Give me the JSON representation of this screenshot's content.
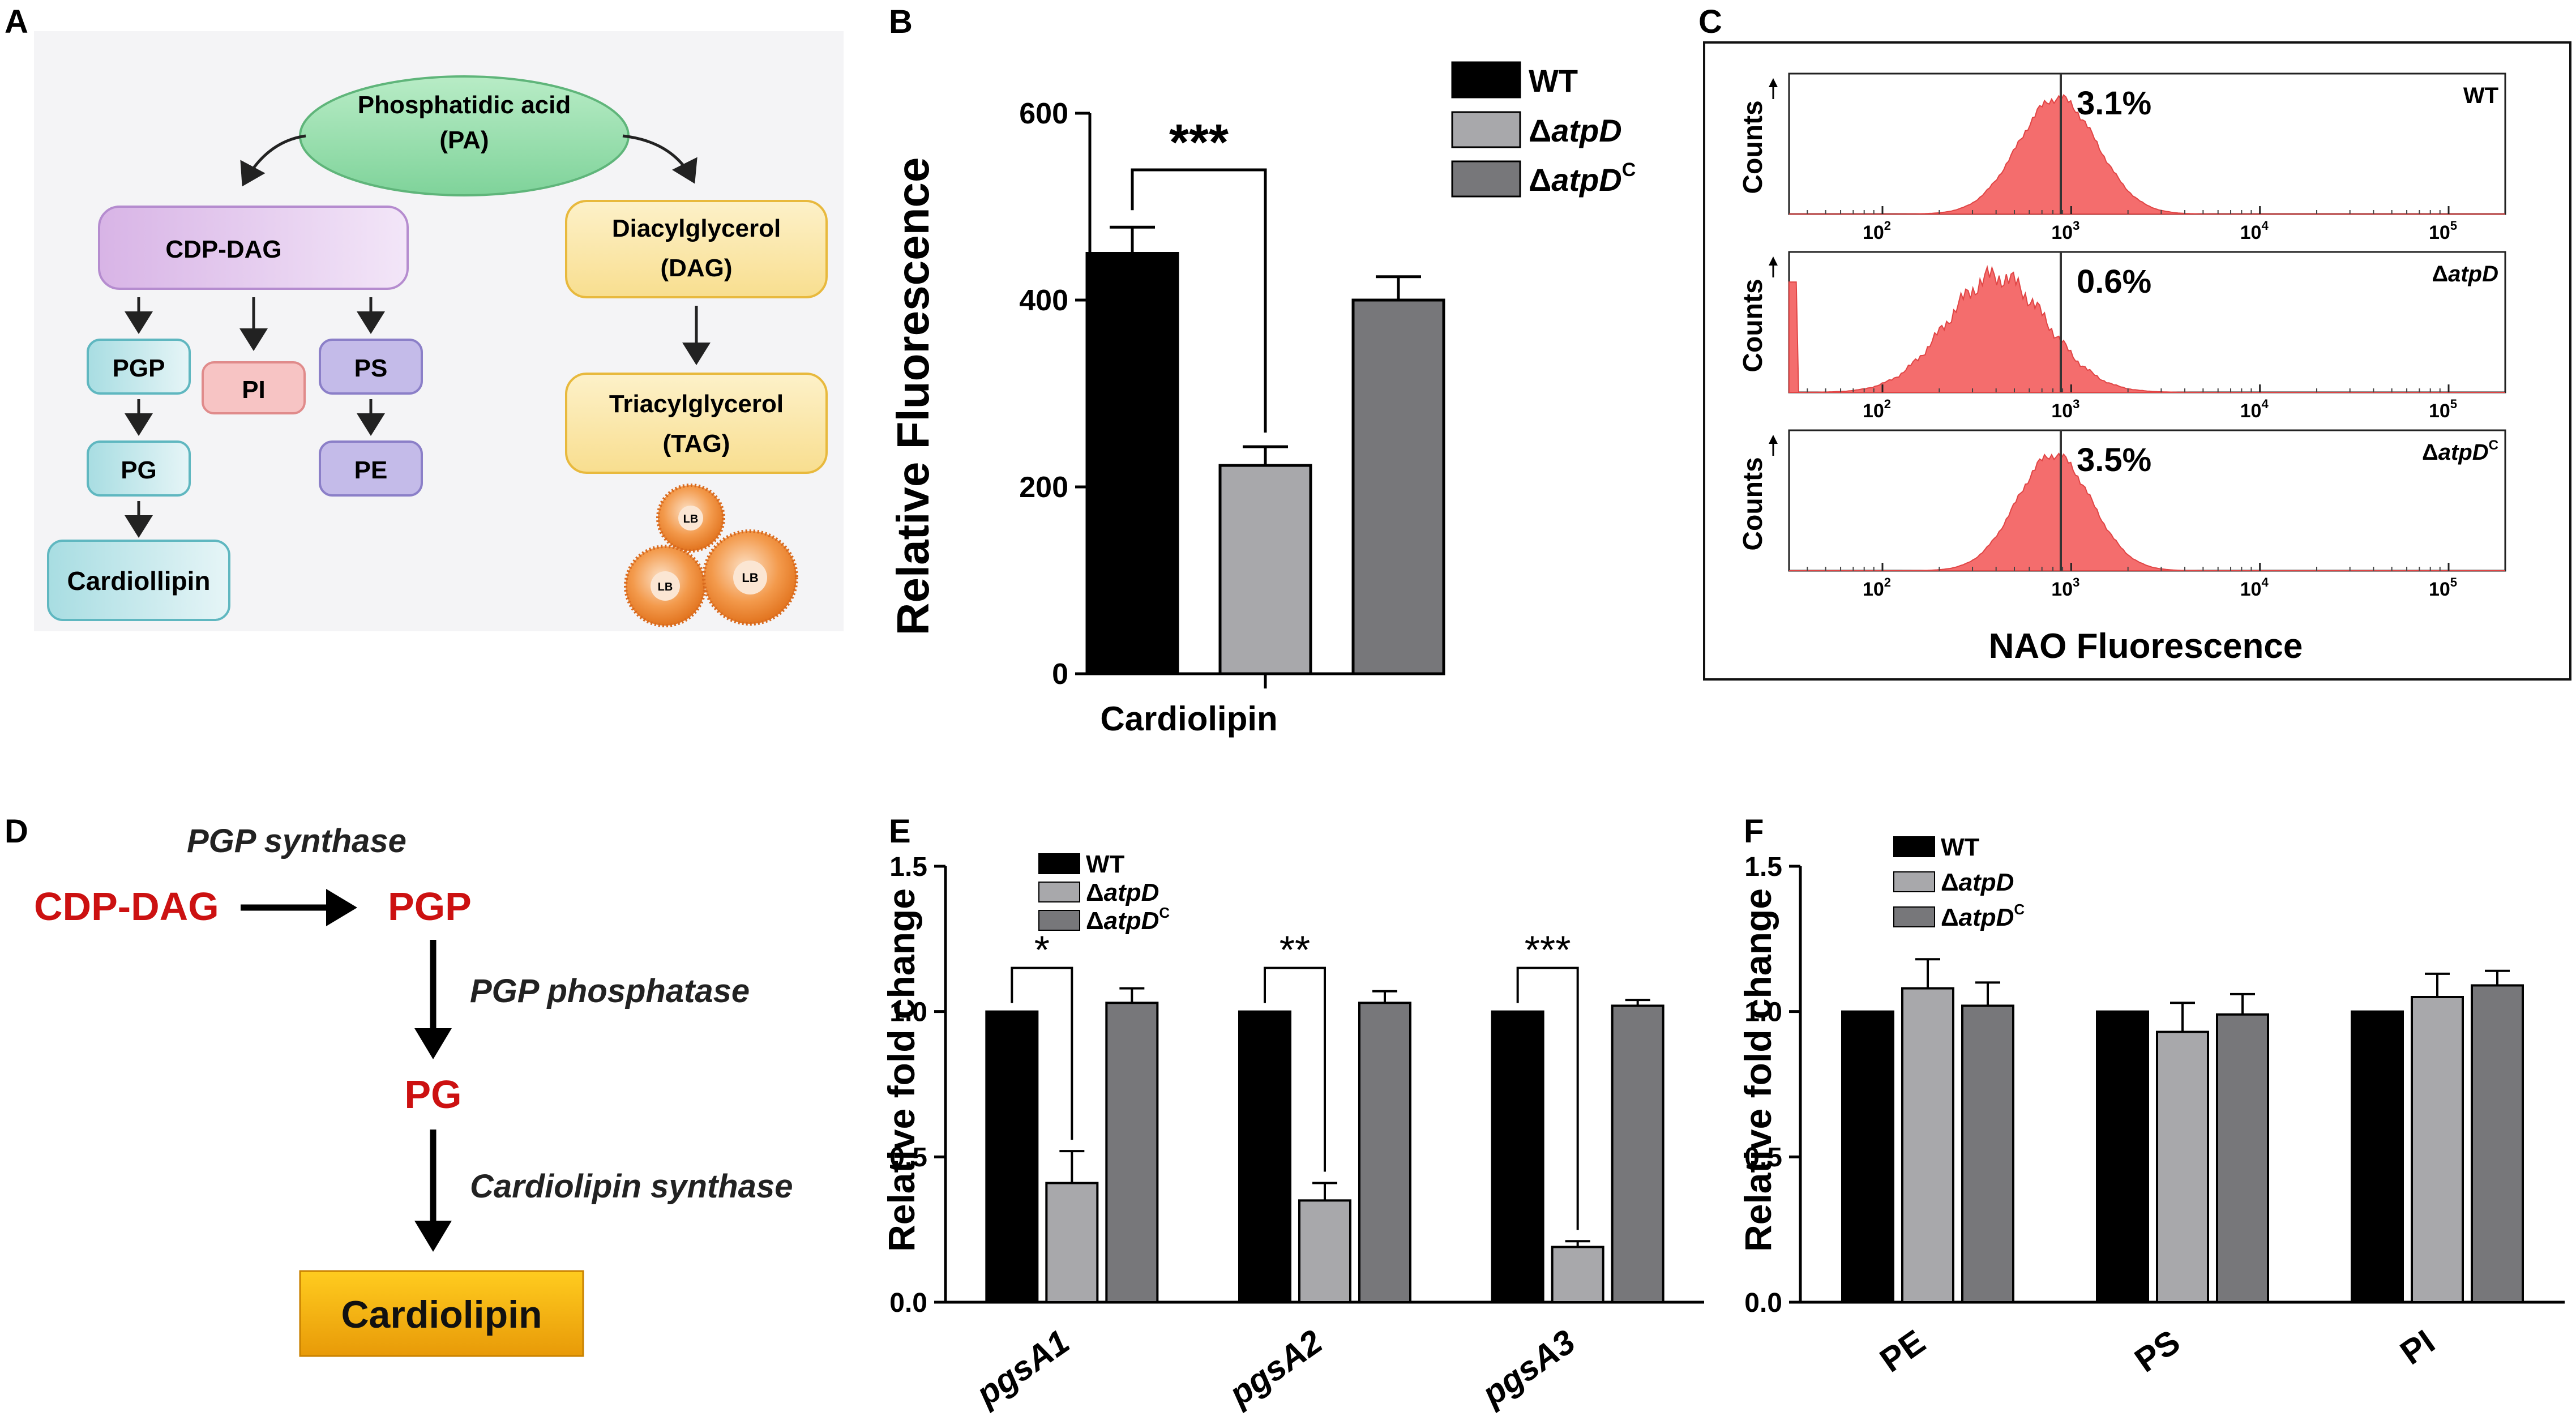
{
  "panel_letters": {
    "a": "A",
    "b": "B",
    "c": "C",
    "d": "D",
    "e": "E",
    "f": "F"
  },
  "colors": {
    "wt": "#000000",
    "atpd": "#a8a8ab",
    "atpdc": "#77777a",
    "hist": "#f46d6d",
    "red_text": "#cc1111",
    "cardiolipin_box": "#f3b412"
  },
  "panel_a": {
    "pa": {
      "line1": "Phosphatidic acid",
      "line2": "(PA)"
    },
    "cdp_dag": "CDP-DAG",
    "pgp": "PGP",
    "pi": "PI",
    "ps": "PS",
    "pg": "PG",
    "pe": "PE",
    "cardiolipin": "Cardiollipin",
    "dag": {
      "line1": "Diacylglycerol",
      "line2": "(DAG)"
    },
    "tag": {
      "line1": "Triacylglycerol",
      "line2": "(TAG)"
    },
    "lb": "LB"
  },
  "legend": {
    "wt": "WT",
    "atpd_prefix": "Δ",
    "atpd_gene": "atpD",
    "atpdc_prefix": "Δ",
    "atpdc_gene": "atpD",
    "atpdc_sup": "C"
  },
  "chart_data": [
    {
      "panel": "B",
      "type": "bar",
      "categories": [
        "Cardiolipin"
      ],
      "series": [
        {
          "name": "WT",
          "values": [
            450
          ],
          "errors": [
            28
          ]
        },
        {
          "name": "ΔatpD",
          "values": [
            223
          ],
          "errors": [
            20
          ]
        },
        {
          "name": "ΔatpDC",
          "values": [
            400
          ],
          "errors": [
            25
          ]
        }
      ],
      "xlabel": "Cardiolipin",
      "ylabel": "Relative Fluorescence",
      "ylim": [
        0,
        600
      ],
      "yticks": [
        "0",
        "200",
        "400",
        "600"
      ],
      "significance": [
        {
          "pair": [
            "WT",
            "ΔatpD"
          ],
          "label": "***"
        }
      ]
    },
    {
      "panel": "C",
      "type": "histogram",
      "xlabel": "NAO Fluorescence",
      "ylabel": "Counts",
      "xticks": [
        "10",
        "10",
        "10",
        "10"
      ],
      "xtick_exponents": [
        "2",
        "3",
        "4",
        "5"
      ],
      "subpanels": [
        {
          "name": "WT",
          "percent": "3.1%",
          "label_prefix": "",
          "label_gene": "WT",
          "label_sup": ""
        },
        {
          "name": "ΔatpD",
          "percent": "0.6%",
          "label_prefix": "Δ",
          "label_gene": "atpD",
          "label_sup": ""
        },
        {
          "name": "ΔatpDC",
          "percent": "3.5%",
          "label_prefix": "Δ",
          "label_gene": "atpD",
          "label_sup": "C"
        }
      ]
    },
    {
      "panel": "E",
      "type": "bar",
      "categories": [
        "pgsA1",
        "pgsA2",
        "pgsA3"
      ],
      "series": [
        {
          "name": "WT",
          "values": [
            1.0,
            1.0,
            1.0
          ],
          "errors": [
            0,
            0,
            0
          ]
        },
        {
          "name": "ΔatpD",
          "values": [
            0.41,
            0.35,
            0.19
          ],
          "errors": [
            0.11,
            0.06,
            0.02
          ]
        },
        {
          "name": "ΔatpDC",
          "values": [
            1.03,
            1.03,
            1.02
          ],
          "errors": [
            0.05,
            0.04,
            0.02
          ]
        }
      ],
      "ylabel": "Relative fold change",
      "ylim": [
        0,
        1.5
      ],
      "yticks": [
        "0.0",
        "0.5",
        "1.0",
        "1.5"
      ],
      "significance": [
        {
          "category": "pgsA1",
          "label": "*"
        },
        {
          "category": "pgsA2",
          "label": "**"
        },
        {
          "category": "pgsA3",
          "label": "***"
        }
      ]
    },
    {
      "panel": "F",
      "type": "bar",
      "categories": [
        "PE",
        "PS",
        "PI"
      ],
      "series": [
        {
          "name": "WT",
          "values": [
            1.0,
            1.0,
            1.0
          ],
          "errors": [
            0,
            0,
            0
          ]
        },
        {
          "name": "ΔatpD",
          "values": [
            1.08,
            0.93,
            1.05
          ],
          "errors": [
            0.1,
            0.1,
            0.08
          ]
        },
        {
          "name": "ΔatpDC",
          "values": [
            1.02,
            0.99,
            1.09
          ],
          "errors": [
            0.08,
            0.07,
            0.05
          ]
        }
      ],
      "ylabel": "Relative fold change",
      "ylim": [
        0,
        1.5
      ],
      "yticks": [
        "0.0",
        "0.5",
        "1.0",
        "1.5"
      ]
    }
  ],
  "panel_d": {
    "cdp_dag": "CDP-DAG",
    "pgp": "PGP",
    "pg": "PG",
    "cardiolipin": "Cardiolipin",
    "pgp_synthase": "PGP synthase",
    "pgp_phosphatase": "PGP phosphatase",
    "cardiolipin_synthase": "Cardiolipin synthase"
  }
}
